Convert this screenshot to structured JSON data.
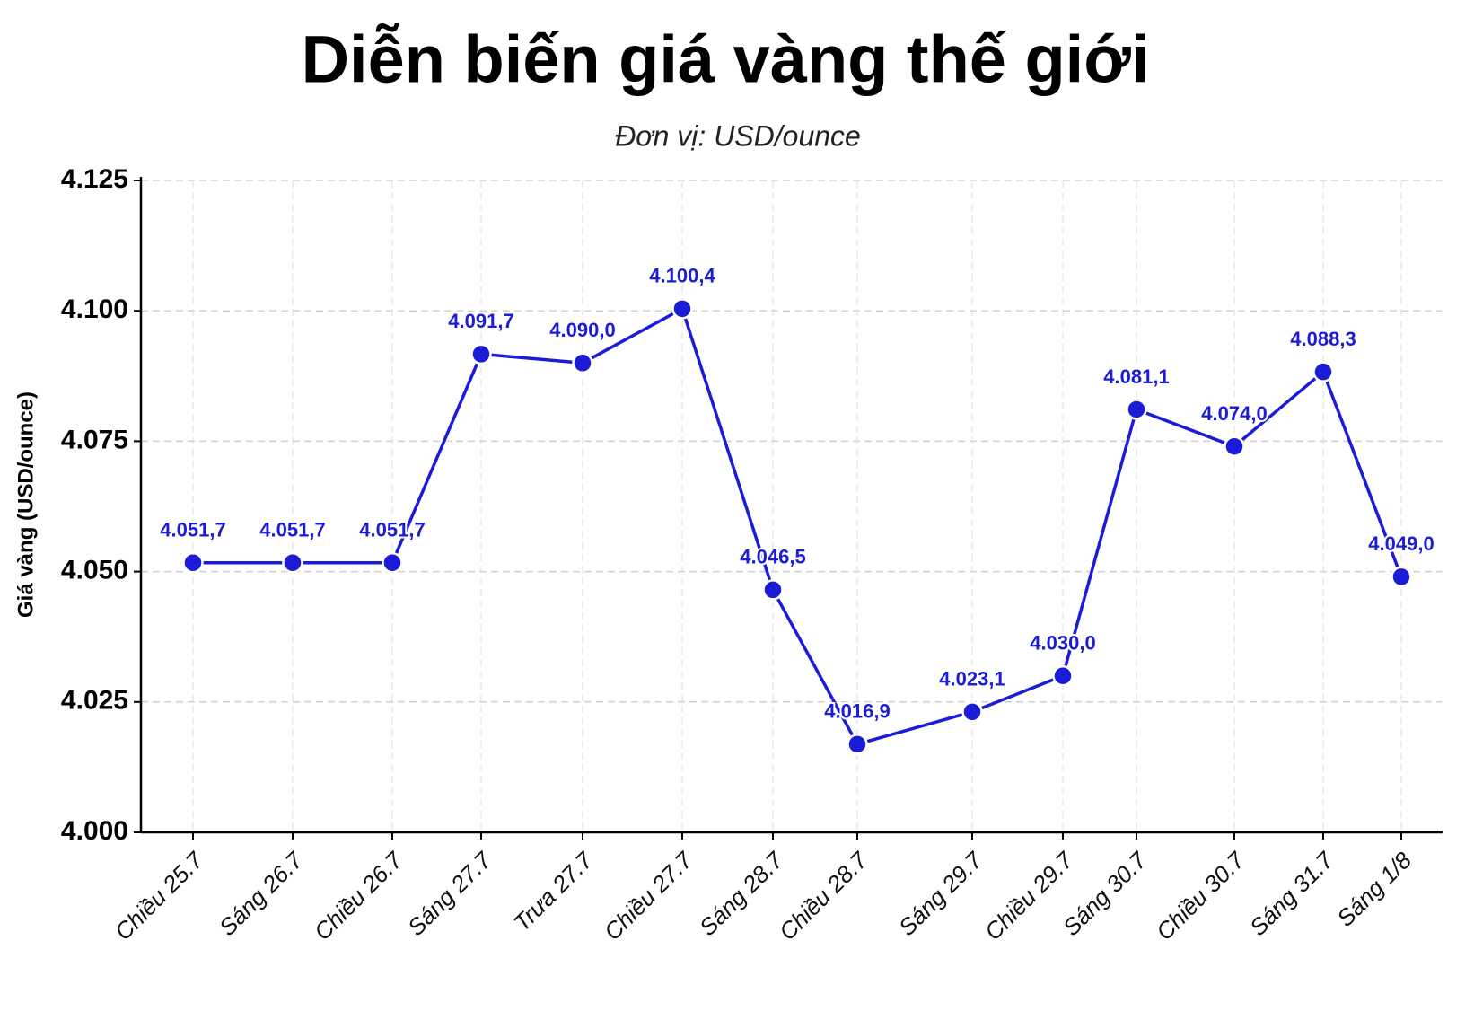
{
  "chart_data": {
    "type": "line",
    "title": "Diễn biến giá vàng thế giới",
    "subtitle": "Đơn vị: USD/ounce",
    "y_label": "Giá vàng (USD/ounce)",
    "categories": [
      "Chiều 25.7",
      "Sáng 26.7",
      "Chiều 26.7",
      "Sáng 27.7",
      "Trưa 27.7",
      "Chiều 27.7",
      "Sáng 28.7",
      "Chiều 28.7",
      "Sáng 29.7",
      "Chiều 29.7",
      "Sáng 30.7",
      "Chiều 30.7",
      "Sáng 31.7",
      "Sáng 1/8"
    ],
    "series": [
      {
        "name": "Giá vàng",
        "color": "#1c1cd6",
        "values": [
          4051.7,
          4051.7,
          4051.7,
          4091.7,
          4090.0,
          4100.4,
          4046.5,
          4016.9,
          4023.1,
          4030.0,
          4081.1,
          4074.0,
          4088.3,
          4049.0
        ],
        "value_labels": [
          "4.051,7",
          "4.051,7",
          "4.051,7",
          "4.091,7",
          "4.090,0",
          "4.100,4",
          "4.046,5",
          "4.016,9",
          "4.023,1",
          "4.030,0",
          "4.081,1",
          "4.074,0",
          "4.088,3",
          "4.049,0"
        ]
      }
    ],
    "ylim": [
      4000,
      4125
    ],
    "yticks": [
      {
        "value": 4000,
        "label": "4.000"
      },
      {
        "value": 4025,
        "label": "4.025"
      },
      {
        "value": 4050,
        "label": "4.050"
      },
      {
        "value": 4075,
        "label": "4.075"
      },
      {
        "value": 4100,
        "label": "4.100"
      },
      {
        "value": 4125,
        "label": "4.125"
      }
    ],
    "grid": true
  }
}
